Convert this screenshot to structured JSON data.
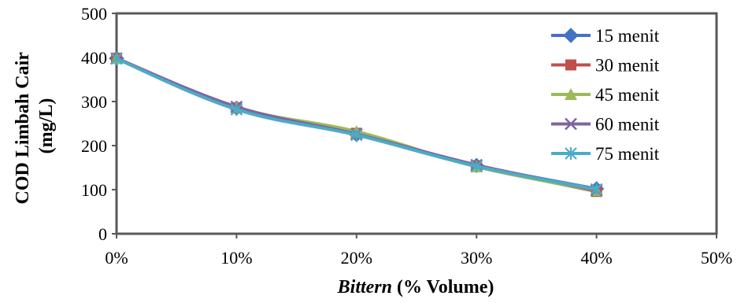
{
  "chart_data": {
    "type": "line",
    "title": "",
    "xlabel": {
      "italic": "Bittern",
      "rest": " (% Volume)"
    },
    "ylabel": {
      "line1": "COD Limbah Cair",
      "line2": "(mg/L)"
    },
    "x": [
      0,
      10,
      20,
      30,
      40
    ],
    "x_tick_values": [
      0,
      10,
      20,
      30,
      40,
      50
    ],
    "x_tick_labels": [
      "0%",
      "10%",
      "20%",
      "30%",
      "40%",
      "50%"
    ],
    "xlim": [
      0,
      50
    ],
    "ylim": [
      0,
      500
    ],
    "y_tick_values": [
      0,
      100,
      200,
      300,
      400,
      500
    ],
    "y_tick_labels": [
      "0",
      "100",
      "200",
      "300",
      "400",
      "500"
    ],
    "grid": false,
    "legend_position": "top-right",
    "series": [
      {
        "name": "15 menit",
        "color": "#4472C4",
        "marker": "diamond",
        "values": [
          398,
          285,
          225,
          155,
          102
        ]
      },
      {
        "name": "30 menit",
        "color": "#C0504D",
        "marker": "square",
        "values": [
          398,
          286,
          228,
          154,
          96
        ]
      },
      {
        "name": "45 menit",
        "color": "#9BBB59",
        "marker": "triangle",
        "values": [
          398,
          287,
          232,
          152,
          98
        ]
      },
      {
        "name": "60 menit",
        "color": "#8064A2",
        "marker": "x",
        "values": [
          398,
          288,
          226,
          156,
          99
        ]
      },
      {
        "name": "75 menit",
        "color": "#4BACC6",
        "marker": "star",
        "values": [
          397,
          282,
          224,
          153,
          101
        ]
      }
    ]
  }
}
